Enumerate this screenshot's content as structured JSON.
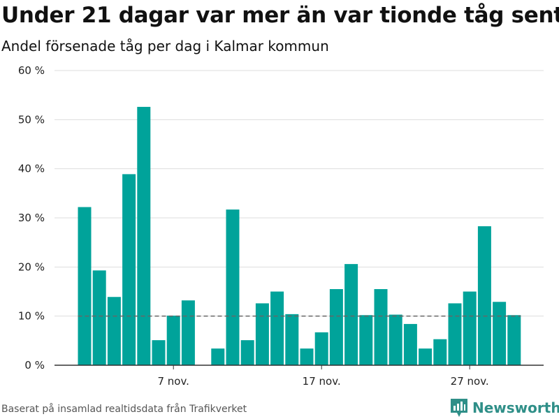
{
  "title": "Under 21 dagar var mer än var tionde tåg sent",
  "subtitle": "Andel försenade tåg per dag i Kalmar kommun",
  "source": "Baserat på insamlad realtidsdata från Trafikverket",
  "brand": "Newsworthy",
  "colors": {
    "bar": "#00a39a",
    "grid": "#dddddd",
    "reference": "#666666",
    "brand": "#2f8f88"
  },
  "chart_data": {
    "type": "bar",
    "x_start": "2023-11-01",
    "categories": [
      "1 nov.",
      "2 nov.",
      "3 nov.",
      "4 nov.",
      "5 nov.",
      "6 nov.",
      "7 nov.",
      "8 nov.",
      "9 nov.",
      "10 nov.",
      "11 nov.",
      "12 nov.",
      "13 nov.",
      "14 nov.",
      "15 nov.",
      "16 nov.",
      "17 nov.",
      "18 nov.",
      "19 nov.",
      "20 nov.",
      "21 nov.",
      "22 nov.",
      "23 nov.",
      "24 nov.",
      "25 nov.",
      "26 nov.",
      "27 nov.",
      "28 nov.",
      "29 nov.",
      "30 nov."
    ],
    "values": [
      32.2,
      19.3,
      13.9,
      38.9,
      52.6,
      5.1,
      10.1,
      13.2,
      null,
      3.4,
      31.7,
      5.1,
      12.6,
      15.0,
      10.4,
      3.4,
      6.7,
      15.5,
      20.6,
      10.2,
      15.5,
      10.3,
      8.4,
      3.4,
      5.3,
      12.6,
      15.0,
      28.3,
      12.9,
      10.2
    ],
    "reference_line": 10,
    "x_ticks": [
      "7 nov.",
      "17 nov.",
      "27 nov."
    ],
    "y_ticks": [
      "0 %",
      "10 %",
      "20 %",
      "30 %",
      "40 %",
      "50 %",
      "60 %"
    ],
    "ylim": [
      0,
      60
    ],
    "grid": true,
    "legend": "none"
  }
}
